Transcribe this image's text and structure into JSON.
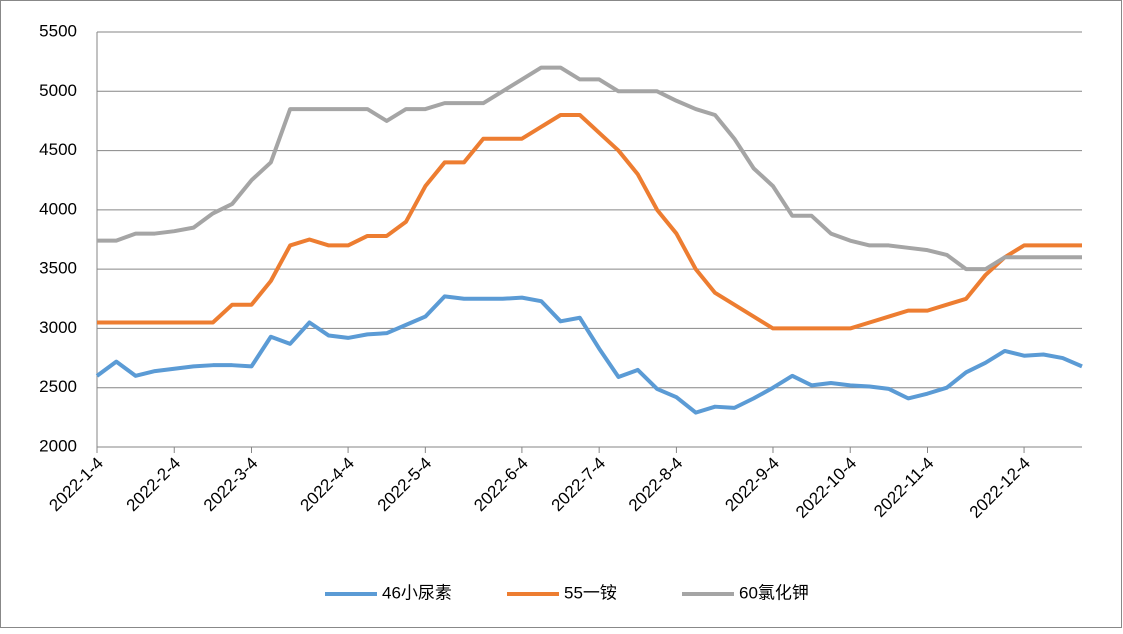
{
  "chart_data": {
    "type": "line",
    "categories": [
      "2022-1-4",
      null,
      null,
      null,
      "2022-2-4",
      null,
      null,
      null,
      "2022-3-4",
      null,
      null,
      null,
      null,
      "2022-4-4",
      null,
      null,
      null,
      "2022-5-4",
      null,
      null,
      null,
      null,
      "2022-6-4",
      null,
      null,
      null,
      "2022-7-4",
      null,
      null,
      null,
      "2022-8-4",
      null,
      null,
      null,
      null,
      "2022-9-4",
      null,
      null,
      null,
      "2022-10-4",
      null,
      null,
      null,
      "2022-11-4",
      null,
      null,
      null,
      null,
      "2022-12-4",
      null,
      null,
      null
    ],
    "series": [
      {
        "name": "46小尿素",
        "color": "#5b9bd5",
        "values": [
          2600,
          2720,
          2600,
          2640,
          2660,
          2680,
          2690,
          2690,
          2680,
          2930,
          2870,
          3050,
          2940,
          2920,
          2950,
          2960,
          3030,
          3100,
          3270,
          3250,
          3250,
          3250,
          3260,
          3230,
          3060,
          3090,
          2830,
          2590,
          2650,
          2490,
          2420,
          2290,
          2340,
          2330,
          2410,
          2500,
          2600,
          2520,
          2540,
          2520,
          2510,
          2490,
          2410,
          2450,
          2500,
          2630,
          2710,
          2810,
          2770,
          2780,
          2750,
          2680
        ]
      },
      {
        "name": "55一铵",
        "color": "#ed7d31",
        "values": [
          3050,
          3050,
          3050,
          3050,
          3050,
          3050,
          3050,
          3200,
          3200,
          3400,
          3700,
          3750,
          3700,
          3700,
          3780,
          3780,
          3900,
          4200,
          4400,
          4400,
          4600,
          4600,
          4600,
          4700,
          4800,
          4800,
          4650,
          4500,
          4300,
          4000,
          3800,
          3500,
          3300,
          3200,
          3100,
          3000,
          3000,
          3000,
          3000,
          3000,
          3050,
          3100,
          3150,
          3150,
          3200,
          3250,
          3450,
          3600,
          3700,
          3700,
          3700,
          3700
        ]
      },
      {
        "name": "60氯化钾",
        "color": "#a5a5a5",
        "values": [
          3740,
          3740,
          3800,
          3800,
          3820,
          3850,
          3970,
          4050,
          4250,
          4400,
          4850,
          4850,
          4850,
          4850,
          4850,
          4750,
          4850,
          4850,
          4900,
          4900,
          4900,
          5000,
          5100,
          5200,
          5200,
          5100,
          5100,
          5000,
          5000,
          5000,
          4920,
          4850,
          4800,
          4600,
          4350,
          4200,
          3950,
          3950,
          3800,
          3740,
          3700,
          3700,
          3680,
          3660,
          3620,
          3500,
          3500,
          3600,
          3600,
          3600,
          3600,
          3600
        ]
      }
    ],
    "ylim": [
      2000,
      5500
    ],
    "yticks": [
      2000,
      2500,
      3000,
      3500,
      4000,
      4500,
      5000,
      5500
    ],
    "grid": true,
    "legend": "bottom"
  }
}
